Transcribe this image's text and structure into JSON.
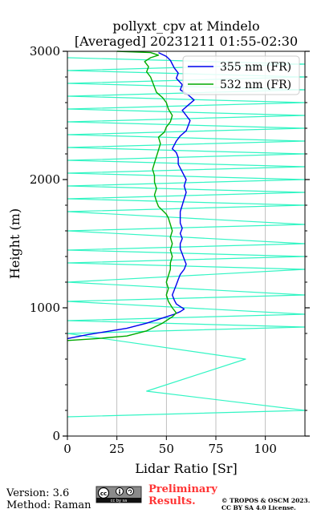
{
  "chart_data": {
    "type": "line",
    "title_line1": "pollyxt_cpv at Mindelo",
    "title_line2": "[Averaged] 20231211 01:55-02:30",
    "xlabel": "Lidar Ratio [Sr]",
    "ylabel": "Height (m)",
    "xlim": [
      0,
      120
    ],
    "ylim": [
      0,
      3000
    ],
    "x_ticks": [
      0,
      25,
      50,
      75,
      100
    ],
    "y_ticks": [
      0,
      1000,
      2000,
      3000
    ],
    "grid": "vertical",
    "legend_placement": "top-right",
    "series": [
      {
        "name": "355 nm (FR)",
        "color": "#0000ee",
        "points": [
          [
            0,
            760
          ],
          [
            10,
            790
          ],
          [
            20,
            815
          ],
          [
            30,
            840
          ],
          [
            40,
            880
          ],
          [
            48,
            920
          ],
          [
            54,
            950
          ],
          [
            57,
            970
          ],
          [
            59,
            990
          ],
          [
            57,
            1010
          ],
          [
            55,
            1030
          ],
          [
            54,
            1060
          ],
          [
            53,
            1100
          ],
          [
            54,
            1140
          ],
          [
            55,
            1180
          ],
          [
            56,
            1220
          ],
          [
            57,
            1260
          ],
          [
            59,
            1300
          ],
          [
            60,
            1340
          ],
          [
            59,
            1380
          ],
          [
            58,
            1420
          ],
          [
            57,
            1460
          ],
          [
            57,
            1500
          ],
          [
            58,
            1540
          ],
          [
            57,
            1580
          ],
          [
            58,
            1620
          ],
          [
            57,
            1660
          ],
          [
            57,
            1700
          ],
          [
            57,
            1750
          ],
          [
            58,
            1800
          ],
          [
            59,
            1850
          ],
          [
            60,
            1900
          ],
          [
            59,
            1950
          ],
          [
            60,
            2000
          ],
          [
            58,
            2060
          ],
          [
            56,
            2120
          ],
          [
            56,
            2170
          ],
          [
            55,
            2210
          ],
          [
            53,
            2240
          ],
          [
            54,
            2270
          ],
          [
            55,
            2300
          ],
          [
            57,
            2340
          ],
          [
            60,
            2380
          ],
          [
            61,
            2420
          ],
          [
            62,
            2460
          ],
          [
            60,
            2500
          ],
          [
            58,
            2540
          ],
          [
            61,
            2580
          ],
          [
            64,
            2620
          ],
          [
            61,
            2660
          ],
          [
            57,
            2700
          ],
          [
            58,
            2740
          ],
          [
            55,
            2790
          ],
          [
            56,
            2830
          ],
          [
            54,
            2870
          ],
          [
            53,
            2900
          ],
          [
            52,
            2930
          ],
          [
            50,
            2960
          ],
          [
            46,
            2990
          ]
        ]
      },
      {
        "name": "532 nm (FR)",
        "color": "#00aa00",
        "points": [
          [
            0,
            745
          ],
          [
            15,
            760
          ],
          [
            30,
            780
          ],
          [
            40,
            820
          ],
          [
            48,
            880
          ],
          [
            53,
            930
          ],
          [
            55,
            960
          ],
          [
            53,
            1000
          ],
          [
            51,
            1050
          ],
          [
            50,
            1100
          ],
          [
            51,
            1150
          ],
          [
            50,
            1200
          ],
          [
            51,
            1250
          ],
          [
            52,
            1300
          ],
          [
            52,
            1350
          ],
          [
            53,
            1400
          ],
          [
            52,
            1450
          ],
          [
            53,
            1500
          ],
          [
            52,
            1550
          ],
          [
            53,
            1600
          ],
          [
            52,
            1650
          ],
          [
            51,
            1700
          ],
          [
            50,
            1730
          ],
          [
            48,
            1760
          ],
          [
            46,
            1790
          ],
          [
            45,
            1830
          ],
          [
            44,
            1880
          ],
          [
            45,
            1930
          ],
          [
            44,
            1980
          ],
          [
            44,
            2030
          ],
          [
            43,
            2080
          ],
          [
            44,
            2130
          ],
          [
            45,
            2180
          ],
          [
            46,
            2230
          ],
          [
            47,
            2280
          ],
          [
            46,
            2330
          ],
          [
            49,
            2370
          ],
          [
            50,
            2410
          ],
          [
            52,
            2450
          ],
          [
            53,
            2500
          ],
          [
            51,
            2550
          ],
          [
            50,
            2600
          ],
          [
            48,
            2640
          ],
          [
            45,
            2680
          ],
          [
            44,
            2720
          ],
          [
            43,
            2760
          ],
          [
            42,
            2800
          ],
          [
            40,
            2840
          ],
          [
            41,
            2880
          ],
          [
            39,
            2920
          ],
          [
            42,
            2950
          ],
          [
            46,
            2970
          ],
          [
            42,
            2990
          ],
          [
            25,
            3000
          ]
        ]
      },
      {
        "name": "",
        "color": "#33f5c4",
        "points": [
          [
            0,
            150
          ],
          [
            120,
            200
          ],
          [
            40,
            350
          ],
          [
            90,
            600
          ],
          [
            0,
            800
          ],
          [
            120,
            850
          ],
          [
            0,
            900
          ],
          [
            120,
            950
          ],
          [
            0,
            1050
          ],
          [
            120,
            1100
          ],
          [
            0,
            1200
          ],
          [
            120,
            1300
          ],
          [
            0,
            1350
          ],
          [
            120,
            1400
          ],
          [
            0,
            1450
          ],
          [
            120,
            1500
          ],
          [
            0,
            1600
          ],
          [
            120,
            1650
          ],
          [
            0,
            1750
          ],
          [
            120,
            1800
          ],
          [
            0,
            1850
          ],
          [
            120,
            1900
          ],
          [
            0,
            1950
          ],
          [
            120,
            2000
          ],
          [
            0,
            2050
          ],
          [
            120,
            2100
          ],
          [
            0,
            2150
          ],
          [
            120,
            2200
          ],
          [
            0,
            2250
          ],
          [
            120,
            2300
          ],
          [
            0,
            2350
          ],
          [
            120,
            2400
          ],
          [
            0,
            2450
          ],
          [
            120,
            2500
          ],
          [
            0,
            2550
          ],
          [
            120,
            2600
          ],
          [
            0,
            2650
          ],
          [
            120,
            2700
          ],
          [
            0,
            2750
          ],
          [
            120,
            2800
          ],
          [
            0,
            2850
          ],
          [
            120,
            2900
          ],
          [
            0,
            2950
          ]
        ]
      }
    ]
  },
  "footer": {
    "version": "Version: 3.6",
    "method": "Method: Raman",
    "preliminary_line1": "Preliminary",
    "preliminary_line2": "Results.",
    "copyright_line1": "© TROPOS & OSCM 2023.",
    "copyright_line2": "CC BY SA 4.0 License.",
    "license_badge": "cc by sa"
  },
  "colors": {
    "grid": "#b0b0b0",
    "preliminary": "#ff3333"
  }
}
